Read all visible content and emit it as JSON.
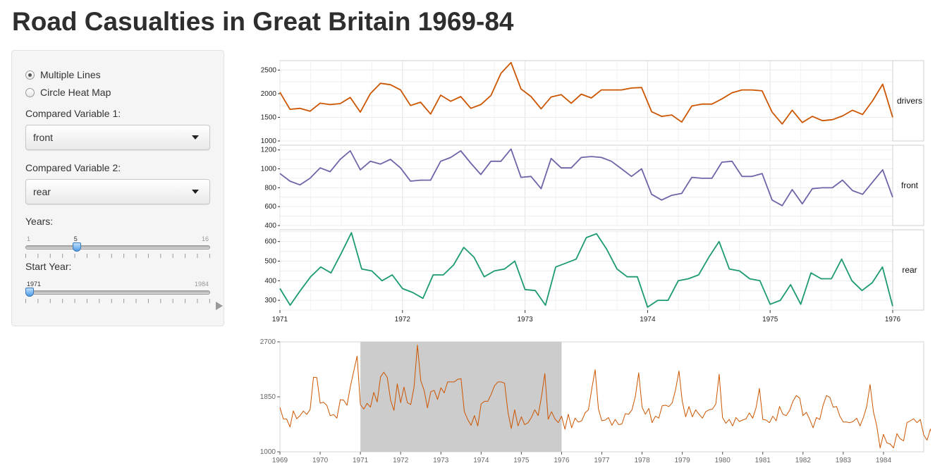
{
  "app": {
    "title": "Road Casualties in Great Britain 1969-84"
  },
  "sidebar": {
    "chart_type_options": [
      {
        "label": "Multiple Lines",
        "selected": true
      },
      {
        "label": "Circle Heat Map",
        "selected": false
      }
    ],
    "var1": {
      "label": "Compared Variable 1:",
      "value": "front"
    },
    "var2": {
      "label": "Compared Variable 2:",
      "value": "rear"
    },
    "years": {
      "label": "Years:",
      "min": "1",
      "max": "16",
      "value": "5",
      "fraction": 0.267
    },
    "start_year": {
      "label": "Start Year:",
      "min": "1971",
      "max": "1984",
      "value": "1971",
      "fraction": 0.0
    }
  },
  "colors": {
    "drivers": "#cc5500",
    "front": "#6f64a8",
    "rear": "#1d9a72",
    "brush": "#cccccc"
  },
  "chart_data": [
    {
      "type": "line",
      "facets": [
        "drivers",
        "front",
        "rear"
      ],
      "x_ticks": [
        "1971",
        "1972",
        "1973",
        "1974",
        "1975",
        "1976"
      ],
      "x_range": [
        1971,
        1976
      ],
      "series": [
        {
          "name": "drivers",
          "ylim": [
            1000,
            2700
          ],
          "y_ticks": [
            1000,
            1500,
            2000,
            2500
          ],
          "values": [
            2030,
            1670,
            1690,
            1630,
            1800,
            1770,
            1790,
            1920,
            1610,
            2000,
            2220,
            2190,
            2080,
            1750,
            1820,
            1570,
            1970,
            1840,
            1940,
            1690,
            1770,
            1960,
            2430,
            2660,
            2100,
            1940,
            1680,
            1930,
            1980,
            1800,
            1990,
            1910,
            2080,
            2080,
            2080,
            2120,
            2130,
            1620,
            1520,
            1550,
            1400,
            1740,
            1780,
            1780,
            1890,
            2020,
            2080,
            2080,
            2060,
            1610,
            1360,
            1650,
            1390,
            1520,
            1430,
            1450,
            1530,
            1650,
            1560,
            1850,
            2200,
            1500
          ]
        },
        {
          "name": "front",
          "ylim": [
            400,
            1250
          ],
          "y_ticks": [
            400,
            600,
            800,
            1000,
            1200
          ],
          "values": [
            950,
            870,
            830,
            900,
            1010,
            970,
            1100,
            1190,
            990,
            1080,
            1050,
            1100,
            1010,
            870,
            880,
            880,
            1080,
            1120,
            1190,
            1060,
            940,
            1080,
            1080,
            1210,
            910,
            920,
            790,
            1110,
            1010,
            1010,
            1120,
            1130,
            1120,
            1080,
            1000,
            920,
            1000,
            730,
            670,
            720,
            740,
            910,
            900,
            900,
            1070,
            1080,
            920,
            920,
            950,
            670,
            610,
            780,
            630,
            790,
            800,
            800,
            880,
            770,
            730,
            860,
            990,
            700
          ]
        },
        {
          "name": "rear",
          "ylim": [
            250,
            660
          ],
          "y_ticks": [
            300,
            400,
            500,
            600
          ],
          "values": [
            360,
            275,
            350,
            420,
            470,
            440,
            540,
            645,
            460,
            450,
            400,
            430,
            360,
            340,
            310,
            430,
            430,
            480,
            570,
            520,
            420,
            450,
            460,
            500,
            355,
            350,
            275,
            470,
            490,
            510,
            620,
            640,
            560,
            460,
            420,
            420,
            265,
            300,
            300,
            400,
            410,
            430,
            520,
            600,
            460,
            450,
            410,
            400,
            280,
            300,
            380,
            280,
            440,
            410,
            410,
            510,
            400,
            350,
            390,
            470,
            270
          ]
        }
      ]
    },
    {
      "type": "line",
      "name": "overview",
      "ylim": [
        1000,
        2700
      ],
      "y_ticks": [
        1000,
        1850,
        2700
      ],
      "x_ticks": [
        "1969",
        "1970",
        "1971",
        "1972",
        "1973",
        "1974",
        "1975",
        "1976",
        "1977",
        "1978",
        "1979",
        "1980",
        "1981",
        "1982",
        "1983",
        "1984"
      ],
      "x_range": [
        1969,
        1985
      ],
      "brush": [
        1971,
        1976
      ],
      "series": [
        {
          "name": "drivers",
          "values": [
            1687,
            1508,
            1507,
            1385,
            1632,
            1511,
            1559,
            1630,
            1579,
            1653,
            2152,
            2148,
            1752,
            1765,
            1717,
            1558,
            1575,
            1520,
            1805,
            1800,
            1719,
            2008,
            2242,
            2478,
            1730,
            1660,
            1750,
            1690,
            1920,
            1770,
            2160,
            2230,
            2150,
            1800,
            1640,
            2050,
            1760,
            2000,
            1760,
            1730,
            2000,
            2650,
            2100,
            1950,
            1680,
            1930,
            1950,
            1810,
            1990,
            1910,
            2080,
            2080,
            2080,
            2120,
            2130,
            1620,
            1500,
            1410,
            1560,
            1400,
            1740,
            1780,
            1780,
            1890,
            2020,
            2080,
            2080,
            2060,
            1610,
            1360,
            1650,
            1400,
            1540,
            1420,
            1450,
            1530,
            1650,
            1560,
            1850,
            2210,
            1503,
            1620,
            1510,
            1450,
            1550,
            1350,
            1580,
            1370,
            1520,
            1460,
            1480,
            1600,
            1650,
            1970,
            2270,
            1660,
            1480,
            1490,
            1530,
            1410,
            1500,
            1420,
            1430,
            1590,
            1580,
            1650,
            1860,
            2220,
            1690,
            1580,
            1670,
            1450,
            1550,
            1520,
            1710,
            1720,
            1700,
            1760,
            1960,
            2250,
            1780,
            1540,
            1700,
            1540,
            1650,
            1580,
            1520,
            1620,
            1650,
            1660,
            1740,
            2200,
            1530,
            1440,
            1500,
            1400,
            1530,
            1470,
            1490,
            1510,
            1600,
            1520,
            1680,
            1980,
            1500,
            1490,
            1450,
            1550,
            1480,
            1700,
            1580,
            1560,
            1640,
            1780,
            1870,
            1830,
            1560,
            1610,
            1500,
            1370,
            1530,
            1500,
            1720,
            1870,
            1840,
            1690,
            1700,
            1550,
            1460,
            1460,
            1450,
            1470,
            1520,
            1400,
            1530,
            1700,
            2040,
            1620,
            1400,
            1060,
            1270,
            1140,
            1120,
            1060,
            1280,
            1200,
            1170,
            1450,
            1480,
            1510,
            1450,
            1500,
            1260,
            1180,
            1350,
            1160,
            1220,
            1180,
            1340,
            1560,
            1640,
            1760,
            1780
          ]
        }
      ]
    }
  ]
}
